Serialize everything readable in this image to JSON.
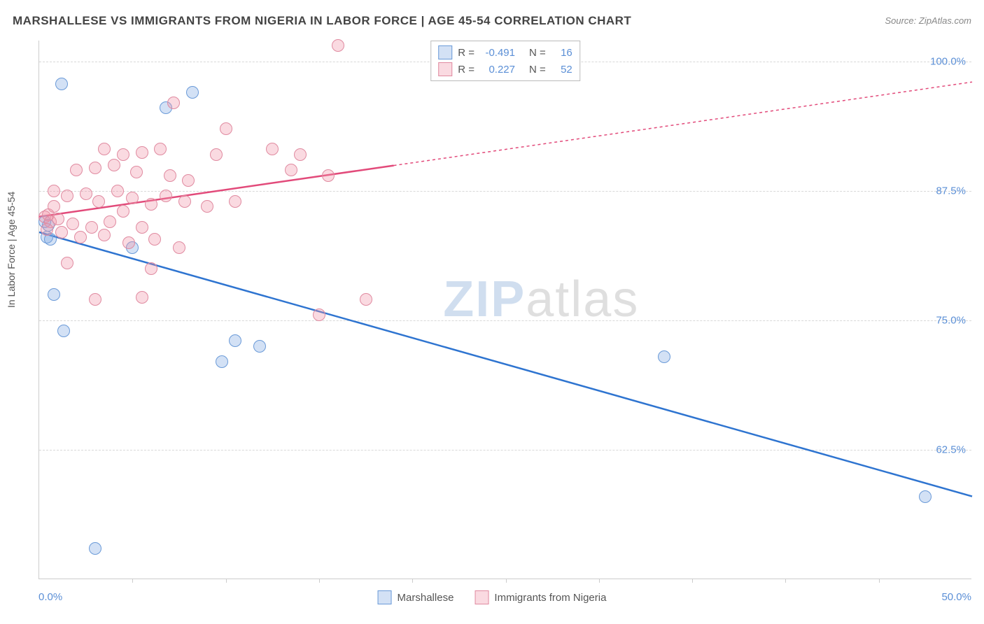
{
  "title": "MARSHALLESE VS IMMIGRANTS FROM NIGERIA IN LABOR FORCE | AGE 45-54 CORRELATION CHART",
  "source_label": "Source: ZipAtlas.com",
  "ylabel": "In Labor Force | Age 45-54",
  "watermark": {
    "part1": "ZIP",
    "part2": "atlas"
  },
  "chart": {
    "type": "scatter",
    "xlim": [
      0.0,
      50.0
    ],
    "ylim": [
      50.0,
      102.0
    ],
    "xtick_labels": {
      "min": "0.0%",
      "max": "50.0%"
    },
    "xticks": [
      5,
      10,
      15,
      20,
      25,
      30,
      35,
      40,
      45
    ],
    "yticks": [
      {
        "value": 62.5,
        "label": "62.5%"
      },
      {
        "value": 75.0,
        "label": "75.0%"
      },
      {
        "value": 87.5,
        "label": "87.5%"
      },
      {
        "value": 100.0,
        "label": "100.0%"
      }
    ],
    "grid_color": "#d8d8d8",
    "axis_color": "#cccccc",
    "tick_label_color": "#5b8fd6",
    "background_color": "#ffffff",
    "marker_radius": 9,
    "marker_border_width": 1.5,
    "series": [
      {
        "name": "Marshallese",
        "fill": "rgba(130,170,225,0.35)",
        "stroke": "#6a9ad8",
        "line_color": "#2e74d0",
        "R": "-0.491",
        "N": "16",
        "trend": {
          "x1": 0.0,
          "y1": 83.5,
          "x2": 50.0,
          "y2": 58.0,
          "solid_until_x": 50.0
        },
        "points": [
          {
            "x": 1.2,
            "y": 97.8
          },
          {
            "x": 6.8,
            "y": 95.5
          },
          {
            "x": 8.2,
            "y": 97.0
          },
          {
            "x": 0.3,
            "y": 84.5
          },
          {
            "x": 0.5,
            "y": 84.2
          },
          {
            "x": 0.4,
            "y": 83.0
          },
          {
            "x": 0.6,
            "y": 82.8
          },
          {
            "x": 5.0,
            "y": 82.0
          },
          {
            "x": 0.8,
            "y": 77.5
          },
          {
            "x": 1.3,
            "y": 74.0
          },
          {
            "x": 10.5,
            "y": 73.0
          },
          {
            "x": 11.8,
            "y": 72.5
          },
          {
            "x": 9.8,
            "y": 71.0
          },
          {
            "x": 33.5,
            "y": 71.5
          },
          {
            "x": 47.5,
            "y": 58.0
          },
          {
            "x": 3.0,
            "y": 53.0
          }
        ]
      },
      {
        "name": "Immigrants from Nigeria",
        "fill": "rgba(240,150,170,0.35)",
        "stroke": "#e08aa0",
        "line_color": "#e24a7a",
        "R": "0.227",
        "N": "52",
        "trend": {
          "x1": 0.0,
          "y1": 85.0,
          "x2": 50.0,
          "y2": 98.0,
          "solid_until_x": 19.0
        },
        "points": [
          {
            "x": 16.0,
            "y": 101.5
          },
          {
            "x": 7.2,
            "y": 96.0
          },
          {
            "x": 10.0,
            "y": 93.5
          },
          {
            "x": 3.5,
            "y": 91.5
          },
          {
            "x": 4.5,
            "y": 91.0
          },
          {
            "x": 5.5,
            "y": 91.2
          },
          {
            "x": 6.5,
            "y": 91.5
          },
          {
            "x": 9.5,
            "y": 91.0
          },
          {
            "x": 12.5,
            "y": 91.5
          },
          {
            "x": 14.0,
            "y": 91.0
          },
          {
            "x": 2.0,
            "y": 89.5
          },
          {
            "x": 3.0,
            "y": 89.7
          },
          {
            "x": 4.0,
            "y": 90.0
          },
          {
            "x": 5.2,
            "y": 89.3
          },
          {
            "x": 7.0,
            "y": 89.0
          },
          {
            "x": 8.0,
            "y": 88.5
          },
          {
            "x": 0.8,
            "y": 87.5
          },
          {
            "x": 1.5,
            "y": 87.0
          },
          {
            "x": 2.5,
            "y": 87.2
          },
          {
            "x": 3.2,
            "y": 86.5
          },
          {
            "x": 4.2,
            "y": 87.5
          },
          {
            "x": 5.0,
            "y": 86.8
          },
          {
            "x": 6.0,
            "y": 86.2
          },
          {
            "x": 6.8,
            "y": 87.0
          },
          {
            "x": 7.8,
            "y": 86.5
          },
          {
            "x": 9.0,
            "y": 86.0
          },
          {
            "x": 10.5,
            "y": 86.5
          },
          {
            "x": 13.5,
            "y": 89.5
          },
          {
            "x": 15.5,
            "y": 89.0
          },
          {
            "x": 0.3,
            "y": 85.0
          },
          {
            "x": 0.5,
            "y": 85.2
          },
          {
            "x": 0.6,
            "y": 84.5
          },
          {
            "x": 1.0,
            "y": 84.8
          },
          {
            "x": 1.8,
            "y": 84.3
          },
          {
            "x": 2.8,
            "y": 84.0
          },
          {
            "x": 3.8,
            "y": 84.5
          },
          {
            "x": 5.5,
            "y": 84.0
          },
          {
            "x": 0.4,
            "y": 83.8
          },
          {
            "x": 1.2,
            "y": 83.5
          },
          {
            "x": 2.2,
            "y": 83.0
          },
          {
            "x": 3.5,
            "y": 83.2
          },
          {
            "x": 4.8,
            "y": 82.5
          },
          {
            "x": 6.2,
            "y": 82.8
          },
          {
            "x": 7.5,
            "y": 82.0
          },
          {
            "x": 6.0,
            "y": 80.0
          },
          {
            "x": 1.5,
            "y": 80.5
          },
          {
            "x": 3.0,
            "y": 77.0
          },
          {
            "x": 5.5,
            "y": 77.2
          },
          {
            "x": 17.5,
            "y": 77.0
          },
          {
            "x": 15.0,
            "y": 75.5
          },
          {
            "x": 0.8,
            "y": 86.0
          },
          {
            "x": 4.5,
            "y": 85.5
          }
        ]
      }
    ],
    "legend_top": {
      "rows": [
        {
          "series_idx": 0,
          "r_label": "R =",
          "n_label": "N ="
        },
        {
          "series_idx": 1,
          "r_label": "R =",
          "n_label": "N ="
        }
      ]
    },
    "legend_bottom": [
      {
        "series_idx": 0
      },
      {
        "series_idx": 1
      }
    ]
  }
}
